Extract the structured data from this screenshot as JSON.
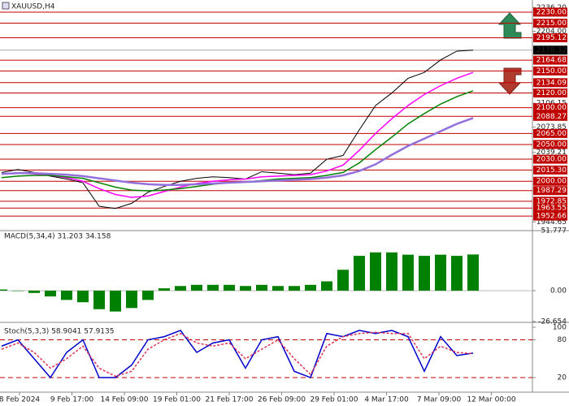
{
  "chart_data": [
    {
      "type": "line",
      "title": "XAUUSD,H4",
      "x_labels": [
        "8 Feb 2024",
        "9 Feb 17:00",
        "14 Feb 09:00",
        "19 Feb 01:00",
        "21 Feb 17:00",
        "26 Feb 09:00",
        "29 Feb 01:00",
        "4 Mar 17:00",
        "7 Mar 09:00",
        "12 Mar 00:00"
      ],
      "ylim": [
        1934,
        2246.5
      ],
      "yticks": [
        {
          "value": 2236.2,
          "label": "2236.20"
        },
        {
          "value": 2204,
          "label": "2204.00"
        },
        2106.15,
        2073.85,
        2039.21,
        1944.65
      ],
      "levels": [
        {
          "value": 2230,
          "label": "2230.00"
        },
        {
          "value": 2215,
          "label": "2215.00"
        },
        2195.12,
        2164.68,
        {
          "value": 2150,
          "label": "2150.00"
        },
        2134.09,
        {
          "value": 2120,
          "label": "2120.00"
        },
        {
          "value": 2100,
          "label": "2100.00"
        },
        2088.27,
        {
          "value": 2065,
          "label": "2065.00"
        },
        {
          "value": 2050,
          "label": "2050.00"
        },
        {
          "value": 2030,
          "label": "2030.00"
        },
        {
          "value": 2015.3,
          "label": "2015.30"
        },
        {
          "value": 2000,
          "label": "2000.00"
        },
        1987.29,
        1972.85,
        1963.55,
        1952.66
      ],
      "level_color": "#c00000",
      "last_price": 2178.32,
      "series": [
        {
          "color": "#000000",
          "values": [
            2012,
            2016,
            2012,
            2007,
            2003,
            1998,
            1966,
            1963,
            1970,
            1985,
            1993,
            2000,
            2004,
            2006,
            2005,
            2003,
            2013,
            2011,
            2009,
            2011,
            2030,
            2035,
            2070,
            2103,
            2120,
            2140,
            2148,
            2165,
            2177,
            2178.32
          ]
        },
        {
          "color": "#ff00ff",
          "values": [
            2010,
            2011,
            2010,
            2008,
            2005,
            2000,
            1990,
            1982,
            1978,
            1980,
            1986,
            1992,
            1997,
            2000,
            2002,
            2003,
            2006,
            2007,
            2008,
            2009,
            2014,
            2022,
            2042,
            2065,
            2085,
            2103,
            2118,
            2130,
            2140,
            2148
          ]
        },
        {
          "color": "#008000",
          "values": [
            2005,
            2007,
            2008,
            2008,
            2006,
            2004,
            1998,
            1992,
            1988,
            1987,
            1988,
            1990,
            1993,
            1996,
            1998,
            1999,
            2001,
            2003,
            2004,
            2005,
            2008,
            2012,
            2025,
            2043,
            2060,
            2078,
            2092,
            2105,
            2115,
            2123
          ]
        },
        {
          "color": "#9370db",
          "values": [
            2010,
            2011,
            2011,
            2010,
            2009,
            2007,
            2004,
            2001,
            1998,
            1996,
            1995,
            1995,
            1996,
            1997,
            1998,
            1999,
            2000,
            2001,
            2002,
            2003,
            2005,
            2008,
            2014,
            2023,
            2036,
            2048,
            2058,
            2068,
            2078,
            2086
          ]
        }
      ]
    },
    {
      "type": "bar",
      "title": "MACD(5,34,4) 31.203 34.158",
      "ylim": [
        -26.654,
        51.777
      ],
      "yticks": [
        51.777,
        {
          "value": 0,
          "label": "0.00"
        },
        -26.654
      ],
      "color": "#008000",
      "values": [
        1,
        0,
        -2,
        -5,
        -8,
        -10,
        -16,
        -18,
        -15,
        -8,
        2,
        4,
        5,
        5,
        5,
        4,
        5,
        4,
        4,
        5,
        8,
        18,
        30,
        33,
        33,
        31,
        30,
        31,
        30,
        31.203
      ]
    },
    {
      "type": "line",
      "title": "Stoch(5,3,3) 58.9041 57.9135",
      "ylim": [
        0,
        100
      ],
      "yticks": [
        100,
        80,
        20
      ],
      "series": [
        {
          "color": "#0000cc",
          "values": [
            70,
            80,
            50,
            20,
            60,
            80,
            20,
            20,
            40,
            80,
            85,
            95,
            60,
            75,
            80,
            35,
            80,
            85,
            30,
            20,
            90,
            85,
            95,
            90,
            95,
            85,
            30,
            85,
            55,
            58.9041
          ]
        },
        {
          "color": "#dd3355",
          "values": [
            65,
            75,
            60,
            35,
            50,
            70,
            35,
            22,
            30,
            65,
            80,
            90,
            75,
            70,
            75,
            50,
            65,
            80,
            50,
            25,
            70,
            85,
            90,
            92,
            90,
            90,
            50,
            70,
            60,
            57.9135
          ]
        }
      ]
    }
  ]
}
